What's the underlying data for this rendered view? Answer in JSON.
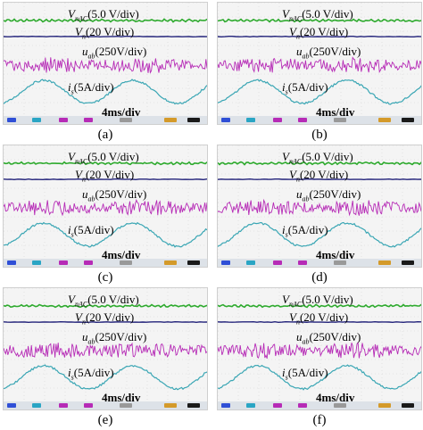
{
  "traces": [
    {
      "key": "vnac",
      "color": "#2eaa2e"
    },
    {
      "key": "vn",
      "color": "#22227a"
    },
    {
      "key": "uab",
      "color": "#b62bb6"
    },
    {
      "key": "is",
      "color": "#3aa6b4"
    }
  ],
  "status_chip_colors": [
    "#2f4fd6",
    "#2aa5c4",
    "#b62bb6",
    "#b62bb6",
    "#999999",
    "#d49a2a",
    "#1a1a1a"
  ],
  "panels": [
    {
      "caption": "(a)",
      "labels": {
        "vnac": {
          "sym": "V",
          "sub": "nAC",
          "text": "(5.0 V/div)"
        },
        "vn": {
          "sym": "V",
          "sub": "n",
          "text": "(20 V/div)"
        },
        "uab": {
          "sym": "u",
          "sub": "ab",
          "text": "(250V/div)"
        },
        "is": {
          "sym": "i",
          "sub": "s",
          "text": "(5A/div)"
        },
        "time": "4ms/div"
      }
    },
    {
      "caption": "(b)",
      "labels": {
        "vnac": {
          "sym": "V",
          "sub": "nAC",
          "text": "(5.0 V/div)"
        },
        "vn": {
          "sym": "V",
          "sub": "n",
          "text": "(20 V/div)"
        },
        "uab": {
          "sym": "u",
          "sub": "ab",
          "text": "(250V/div)"
        },
        "is": {
          "sym": "i",
          "sub": "s",
          "text": "(5A/div)"
        },
        "time": "4ms/div"
      }
    },
    {
      "caption": "(c)",
      "labels": {
        "vnac": {
          "sym": "V",
          "sub": "nAC",
          "text": "(5.0 V/div)"
        },
        "vn": {
          "sym": "V",
          "sub": "n",
          "text": "(20 V/div)"
        },
        "uab": {
          "sym": "u",
          "sub": "ab",
          "text": "(250V/div)"
        },
        "is": {
          "sym": "i",
          "sub": "s",
          "text": "(5A/div)"
        },
        "time": "4ms/div"
      }
    },
    {
      "caption": "(d)",
      "labels": {
        "vnac": {
          "sym": "V",
          "sub": "nAC",
          "text": "(5.0 V/div)"
        },
        "vn": {
          "sym": "V",
          "sub": "n",
          "text": "(20 V/div)"
        },
        "uab": {
          "sym": "u",
          "sub": "ab",
          "text": "(250V/div)"
        },
        "is": {
          "sym": "i",
          "sub": "s",
          "text": "(5A/div)"
        },
        "time": "4ms/div"
      }
    },
    {
      "caption": "(e)",
      "labels": {
        "vnac": {
          "sym": "V",
          "sub": "nAC",
          "text": "(5.0 V/div)"
        },
        "vn": {
          "sym": "V",
          "sub": "n",
          "text": "(20 V/div)"
        },
        "uab": {
          "sym": "u",
          "sub": "ab",
          "text": "(250V/div)"
        },
        "is": {
          "sym": "i",
          "sub": "s",
          "text": "(5A/div)"
        },
        "time": "4ms/div"
      }
    },
    {
      "caption": "(f)",
      "labels": {
        "vnac": {
          "sym": "V",
          "sub": "nAC",
          "text": "(5.0 V/div)"
        },
        "vn": {
          "sym": "V",
          "sub": "n",
          "text": "(20 V/div)"
        },
        "uab": {
          "sym": "u",
          "sub": "ab",
          "text": "(250V/div)"
        },
        "is": {
          "sym": "i",
          "sub": "s",
          "text": "(5A/div)"
        },
        "time": "4ms/div"
      }
    }
  ]
}
